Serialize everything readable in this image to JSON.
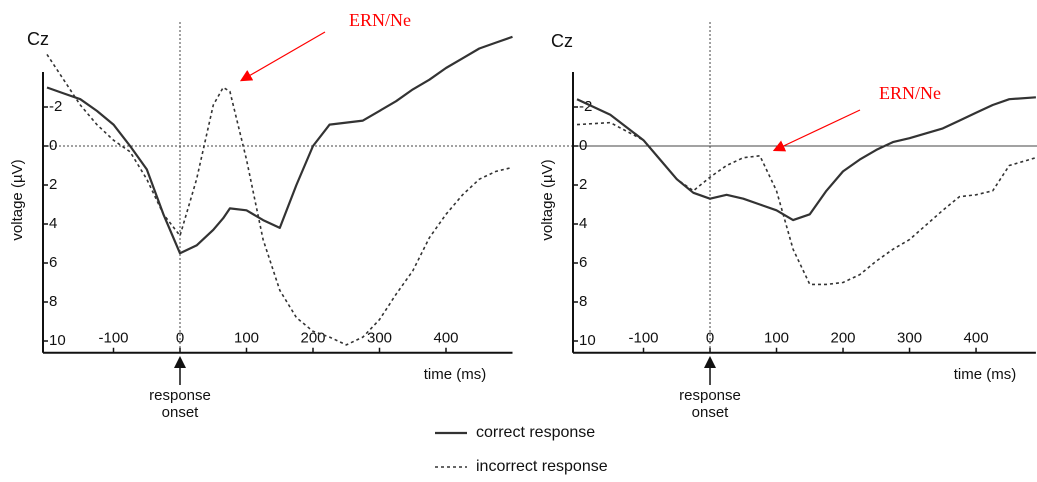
{
  "chart_data": [
    {
      "type": "line",
      "channel": "Cz",
      "xlabel": "time (ms)",
      "ylabel": "voltage (µV)",
      "onset_label": "response onset",
      "annotation": {
        "text": "ERN/Ne",
        "color": "#ff0000"
      },
      "xlim": [
        -200,
        500
      ],
      "ylim": [
        10.5,
        -6
      ],
      "xticks": [
        -100,
        0,
        100,
        200,
        300,
        400
      ],
      "yticks": [
        -2,
        0,
        2,
        4,
        6,
        8,
        10
      ],
      "x": [
        -200,
        -175,
        -150,
        -125,
        -100,
        -75,
        -50,
        -25,
        0,
        25,
        50,
        65,
        75,
        100,
        125,
        150,
        175,
        200,
        225,
        250,
        275,
        300,
        325,
        350,
        375,
        400,
        425,
        450,
        475,
        500
      ],
      "series": [
        {
          "name": "correct response",
          "color": "#333333",
          "dash": "solid",
          "values": [
            -3.0,
            -2.7,
            -2.4,
            -1.8,
            -1.1,
            0,
            1.2,
            3.5,
            5.5,
            5.1,
            4.3,
            3.7,
            3.2,
            3.3,
            3.8,
            4.2,
            2.0,
            0,
            -1.1,
            -1.2,
            -1.3,
            -1.8,
            -2.3,
            -2.9,
            -3.4,
            -4.0,
            -4.5,
            -5.0,
            -5.3,
            -5.6
          ]
        },
        {
          "name": "incorrect response",
          "color": "#333333",
          "dash": "dashed",
          "values": [
            -4.7,
            -3.4,
            -2.1,
            -1.1,
            -0.3,
            0.3,
            1.7,
            3.5,
            4.6,
            1.7,
            -2.1,
            -3.0,
            -2.8,
            0.7,
            4.8,
            7.4,
            8.8,
            9.5,
            9.8,
            10.2,
            9.8,
            8.9,
            7.6,
            6.4,
            4.7,
            3.5,
            2.5,
            1.7,
            1.3,
            1.1
          ]
        }
      ]
    },
    {
      "type": "line",
      "channel": "Cz",
      "xlabel": "time (ms)",
      "ylabel": "voltage (µV)",
      "onset_label": "response onset",
      "annotation": {
        "text": "ERN/Ne",
        "color": "#ff0000"
      },
      "xlim": [
        -200,
        490
      ],
      "ylim": [
        10.5,
        -6
      ],
      "xticks": [
        -100,
        0,
        100,
        200,
        300,
        400
      ],
      "yticks": [
        -2,
        0,
        2,
        4,
        6,
        8,
        10
      ],
      "x": [
        -200,
        -150,
        -100,
        -75,
        -50,
        -25,
        0,
        25,
        50,
        75,
        100,
        125,
        150,
        175,
        200,
        225,
        250,
        275,
        300,
        350,
        375,
        400,
        425,
        450,
        490
      ],
      "series": [
        {
          "color": "#333333",
          "dash": "solid",
          "values": [
            -2.4,
            -1.6,
            -0.3,
            0.7,
            1.7,
            2.4,
            2.7,
            2.5,
            2.7,
            3.0,
            3.3,
            3.8,
            3.5,
            2.3,
            1.3,
            0.7,
            0.2,
            -0.2,
            -0.4,
            -0.9,
            -1.3,
            -1.7,
            -2.1,
            -2.4,
            -2.5
          ]
        },
        {
          "color": "#333333",
          "dash": "dashed",
          "values": [
            -1.1,
            -1.2,
            -0.3,
            0.7,
            1.7,
            2.3,
            1.6,
            1.0,
            0.6,
            0.5,
            2.3,
            5.3,
            7.1,
            7.1,
            7.0,
            6.6,
            5.9,
            5.3,
            4.8,
            3.3,
            2.6,
            2.5,
            2.3,
            1.0,
            0.6
          ]
        }
      ]
    }
  ]
}
